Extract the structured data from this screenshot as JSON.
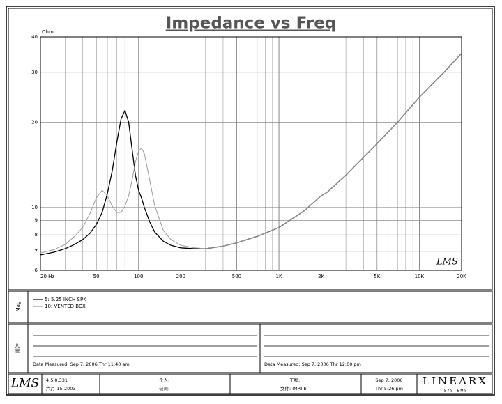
{
  "chart_data": {
    "type": "line",
    "title": "Impedance vs Freq",
    "y_label": "Ohm",
    "corner_logo": "LMS",
    "x": [
      20,
      25,
      30,
      35,
      40,
      45,
      50,
      55,
      60,
      65,
      70,
      75,
      80,
      85,
      90,
      95,
      100,
      105,
      110,
      120,
      130,
      150,
      170,
      200,
      250,
      300,
      400,
      500,
      700,
      1000,
      1500,
      2000,
      2200,
      3000,
      5000,
      7000,
      10000,
      15000,
      20000
    ],
    "series": [
      {
        "name": "5: 5.25 INCH SPK",
        "color": "#000000",
        "values": [
          6.8,
          6.95,
          7.15,
          7.4,
          7.7,
          8.1,
          8.7,
          9.6,
          11.2,
          13.5,
          17,
          20.5,
          22,
          20,
          16,
          13,
          11.5,
          10.8,
          10,
          8.9,
          8.2,
          7.6,
          7.35,
          7.2,
          7.15,
          7.15,
          7.3,
          7.5,
          7.9,
          8.5,
          9.7,
          11,
          11.3,
          13,
          16.8,
          20,
          24.5,
          30,
          35
        ]
      },
      {
        "name": "10: VENTED BOX",
        "color": "#9a9a9a",
        "values": [
          6.9,
          7.1,
          7.4,
          7.9,
          8.5,
          9.5,
          10.8,
          11.5,
          11,
          10.1,
          9.6,
          9.6,
          10.1,
          11,
          12.5,
          14.5,
          15.8,
          16.2,
          15.5,
          12.5,
          10.2,
          8.3,
          7.7,
          7.35,
          7.2,
          7.15,
          7.3,
          7.5,
          7.9,
          8.5,
          9.7,
          11,
          11.3,
          13,
          16.8,
          20,
          24.5,
          30,
          35
        ]
      }
    ],
    "xlim": [
      20,
      20000
    ],
    "ylim": [
      6,
      40
    ],
    "x_log": true,
    "y_log": true,
    "xticks": [
      {
        "value": 20,
        "label": "20 Hz"
      },
      50,
      100,
      200,
      500,
      {
        "value": 1000,
        "label": "1K"
      },
      {
        "value": 2000,
        "label": "2K"
      },
      {
        "value": 5000,
        "label": "5K"
      },
      {
        "value": 10000,
        "label": "10K"
      },
      {
        "value": 20000,
        "label": "20K"
      }
    ],
    "yticks": [
      6,
      7,
      8,
      9,
      10,
      20,
      30,
      40
    ],
    "grid": true,
    "minor_grid": true
  },
  "legend_panel_label": "Mag",
  "notes": {
    "label": "附注",
    "left_measured": "Data Measured: Sep  7, 2006  Thr 11:40 am",
    "right_measured": "Data Measured: Sep  7, 2006  Thr 12:00 pm"
  },
  "footer": {
    "logo": "LMS",
    "version": "4.5.0.331",
    "version_date": "六月-15-2003",
    "personal": "个人:",
    "company": "公司:",
    "project": "工程:",
    "file": "文件: IMP.lib",
    "date": "Sep  7, 2006",
    "time": "Thr 5:26 pm",
    "brand": "LINEARX",
    "brand_sub": "S Y S T E M S"
  }
}
